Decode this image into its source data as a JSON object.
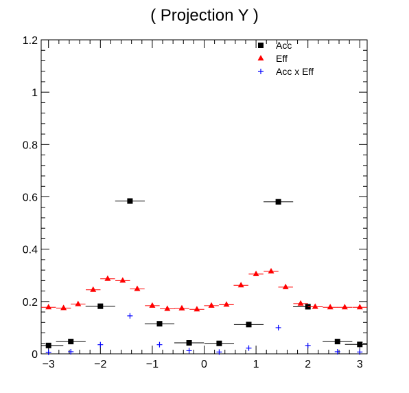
{
  "chart_data": {
    "type": "scatter",
    "title": "( Projection Y )",
    "xlabel": "",
    "ylabel": "",
    "xlim": [
      -3.1416,
      3.1416
    ],
    "ylim": [
      0,
      1.2
    ],
    "x_ticks": [
      -3,
      -2,
      -1,
      0,
      1,
      2,
      3
    ],
    "x_tick_labels": [
      "−3",
      "−2",
      "−1",
      "0",
      "1",
      "2",
      "3"
    ],
    "y_ticks": [
      0,
      0.2,
      0.4,
      0.6,
      0.8,
      1,
      1.2
    ],
    "y_tick_labels": [
      "0",
      "0.2",
      "0.4",
      "0.6",
      "0.8",
      "1",
      "1.2"
    ],
    "grid": false,
    "legend_position": "top-right",
    "series": [
      {
        "name": "Acc",
        "color": "#000000",
        "marker": "square",
        "x_error": 0.2856,
        "x": [
          -3.0,
          -2.57,
          -2.0,
          -1.43,
          -0.86,
          -0.29,
          0.29,
          0.86,
          1.43,
          2.0,
          2.57,
          3.0
        ],
        "y": [
          0.032,
          0.047,
          0.182,
          0.584,
          0.115,
          0.042,
          0.04,
          0.112,
          0.581,
          0.18,
          0.047,
          0.036
        ]
      },
      {
        "name": "Eff",
        "color": "#ff0000",
        "marker": "triangle",
        "x_error": 0.142,
        "x": [
          -3.0,
          -2.71,
          -2.43,
          -2.14,
          -1.86,
          -1.57,
          -1.29,
          -1.0,
          -0.71,
          -0.43,
          -0.14,
          0.14,
          0.43,
          0.71,
          1.0,
          1.29,
          1.57,
          1.86,
          2.14,
          2.43,
          2.71,
          3.0
        ],
        "y": [
          0.178,
          0.175,
          0.19,
          0.245,
          0.287,
          0.28,
          0.248,
          0.184,
          0.172,
          0.174,
          0.17,
          0.184,
          0.188,
          0.262,
          0.305,
          0.315,
          0.255,
          0.192,
          0.18,
          0.178,
          0.178,
          0.178
        ]
      },
      {
        "name": "Acc x Eff",
        "color": "#0000ff",
        "marker": "plus",
        "x": [
          -3.0,
          -2.57,
          -2.0,
          -1.43,
          -0.86,
          -0.29,
          0.29,
          0.86,
          1.43,
          2.0,
          2.57,
          3.0
        ],
        "y": [
          0.006,
          0.008,
          0.035,
          0.145,
          0.035,
          0.012,
          0.007,
          0.022,
          0.1,
          0.032,
          0.008,
          0.007
        ]
      }
    ]
  }
}
